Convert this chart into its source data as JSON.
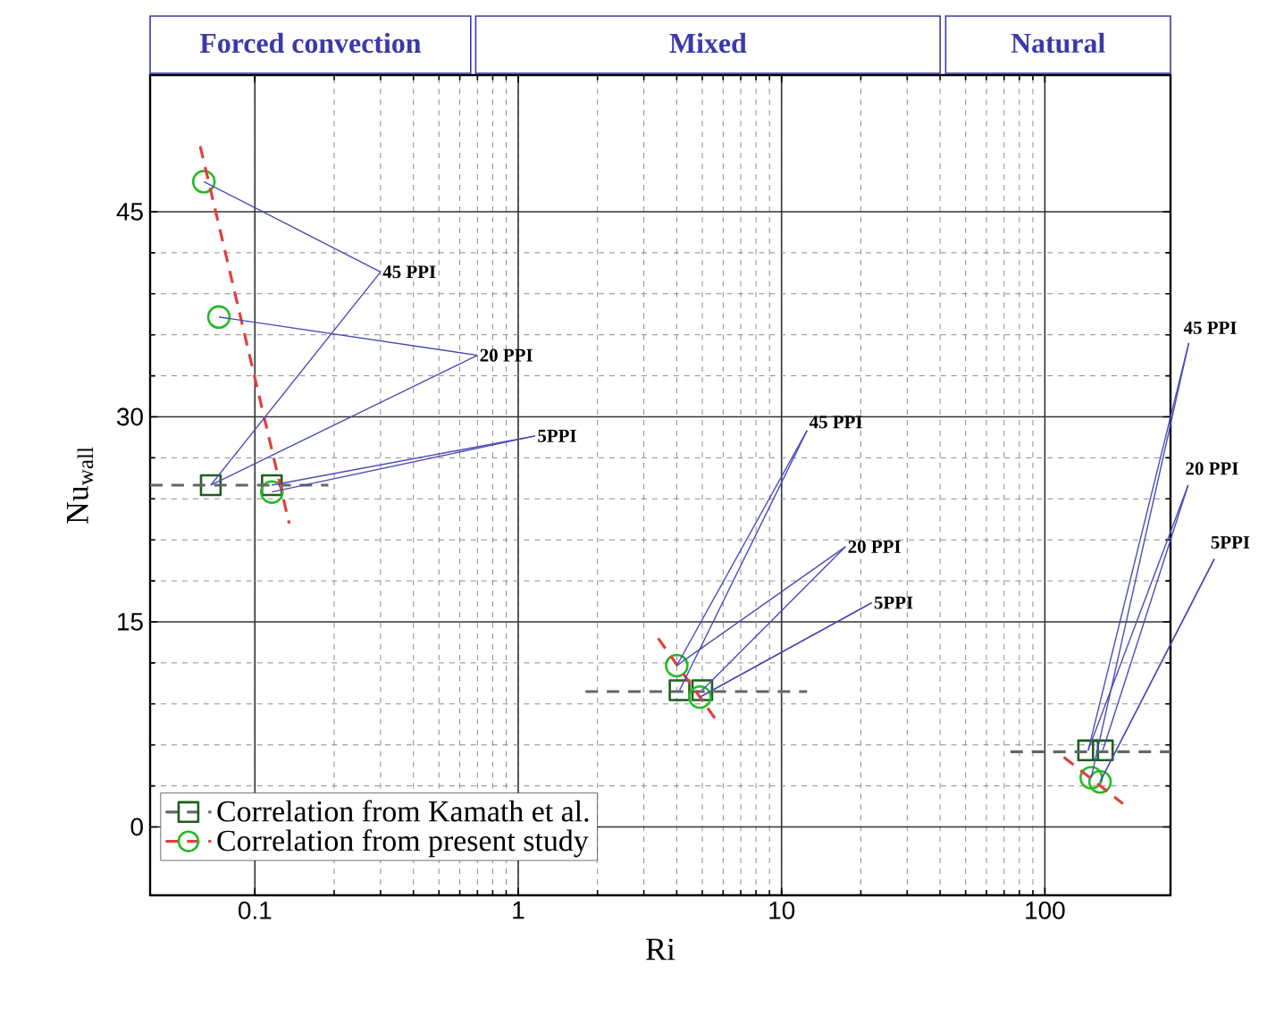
{
  "chart_data": {
    "type": "scatter",
    "xlabel": "Ri",
    "ylabel": "Nu$_{wall}$",
    "log": "x",
    "xlim": [
      0.04,
      300
    ],
    "ylim": [
      -5,
      55
    ],
    "xticks": [
      0.1,
      1,
      10,
      100
    ],
    "yticks": [
      0,
      15,
      30,
      45
    ],
    "grid": true,
    "legend": "bottom left",
    "series": [
      {
        "name": "Correlation from Kamath et al.",
        "marker": "square",
        "color": "#1e5e1e",
        "x": [
          0.068,
          0.116,
          4.1,
          5.0,
          146,
          166
        ],
        "values": [
          25,
          25,
          10,
          10,
          5.6,
          5.6
        ]
      },
      {
        "name": "Correlation from present study",
        "marker": "circle",
        "color": "#22bb22",
        "x": [
          0.064,
          0.073,
          0.116,
          4.0,
          4.9,
          150,
          162
        ],
        "values": [
          47.2,
          37.3,
          24.5,
          11.8,
          9.5,
          3.6,
          3.3
        ]
      },
      {
        "type": "line",
        "line_style": "dashed",
        "color": "#666666",
        "x": [
          0.04,
          0.19,
          1.0,
          1.8,
          12.5,
          50,
          74,
          300
        ],
        "values": [
          25,
          25,
          null,
          9.9,
          9.9,
          null,
          5.5,
          5.5
        ]
      },
      {
        "type": "line",
        "line_style": "dashed",
        "color": "#e04040",
        "x": [
          0.062,
          0.135,
          1.0,
          3.4,
          5.8,
          50,
          118,
          198
        ],
        "values": [
          49.8,
          22.2,
          null,
          13.8,
          7.5,
          null,
          5.1,
          1.7
        ]
      }
    ],
    "annotations": [
      "Forced convection",
      "Mixed",
      "Natural",
      {
        "text": "45 PPI",
        "x": 0.064,
        "y": 47.2
      },
      {
        "text": "20 PPI",
        "x": 0.073,
        "y": 37.3
      },
      {
        "text": "5PPI",
        "x": 0.116,
        "y": 25
      },
      {
        "text": "45 PPI",
        "x": 4.0,
        "y": 11.8
      },
      {
        "text": "20 PPI",
        "x": 5.0,
        "y": 10
      },
      {
        "text": "5PPI",
        "x": 4.9,
        "y": 9.5
      },
      {
        "text": "45 PPI",
        "x": 146,
        "y": 5.6
      },
      {
        "text": "20 PPI",
        "x": 166,
        "y": 5.6
      },
      {
        "text": "5PPI",
        "x": 162,
        "y": 3.3
      }
    ]
  }
}
